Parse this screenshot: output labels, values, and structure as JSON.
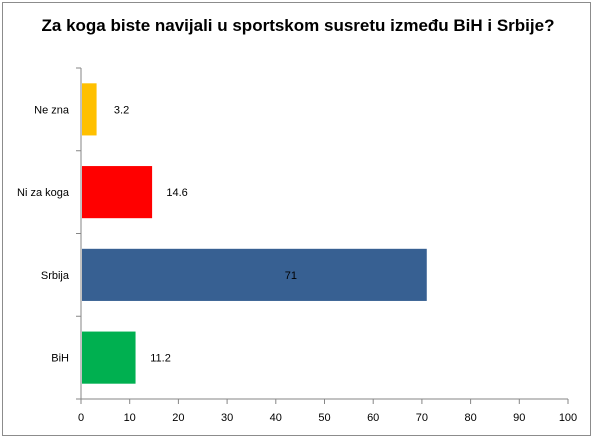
{
  "chart_data": {
    "type": "bar",
    "orientation": "horizontal",
    "title": "Za koga biste navijali u sportskom susretu između BiH i Srbije?",
    "xlabel": "",
    "ylabel": "",
    "categories": [
      "Ne zna",
      "Ni za koga",
      "Srbija",
      "BiH"
    ],
    "values": [
      3.2,
      14.6,
      71,
      11.2
    ],
    "value_labels": [
      "3.2",
      "14.6",
      "71",
      "11.2"
    ],
    "colors": [
      "#FFC000",
      "#FF0000",
      "#376092",
      "#00B050"
    ],
    "xlim": [
      0,
      100
    ],
    "xticks": [
      0,
      10,
      20,
      30,
      40,
      50,
      60,
      70,
      80,
      90,
      100
    ],
    "grid": false,
    "legend": "none"
  }
}
